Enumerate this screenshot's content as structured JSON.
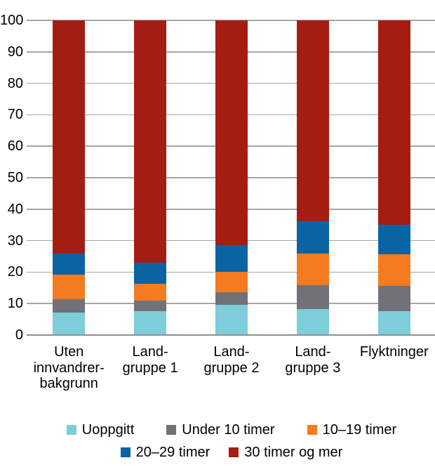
{
  "chart_data": {
    "type": "bar",
    "subtype": "stacked-percent",
    "title": "",
    "xlabel": "",
    "ylabel": "",
    "ylim": [
      0,
      100
    ],
    "yticks": [
      0,
      10,
      20,
      30,
      40,
      50,
      60,
      70,
      80,
      90,
      100
    ],
    "grid": true,
    "legend_position": "bottom",
    "categories": [
      "Uten\ninnvandrer-\nbakgrunn",
      "Land-\ngruppe 1",
      "Land-\ngruppe 2",
      "Land-\ngruppe 3",
      "Flyktninger"
    ],
    "series": [
      {
        "name": "Uoppgitt",
        "color": "#7dcddb",
        "values": [
          7.1,
          7.7,
          9.5,
          8.3,
          7.6
        ]
      },
      {
        "name": "Under 10 timer",
        "color": "#717277",
        "values": [
          4.4,
          3.3,
          4.1,
          7.5,
          8.1
        ]
      },
      {
        "name": "10–19 timer",
        "color": "#f47b20",
        "values": [
          7.7,
          5.3,
          6.5,
          10.2,
          10.0
        ]
      },
      {
        "name": "20–29 timer",
        "color": "#0a64a4",
        "values": [
          6.8,
          6.8,
          8.4,
          10.2,
          9.3
        ]
      },
      {
        "name": "30 timer og mer",
        "color": "#a41d13",
        "values": [
          74.0,
          76.9,
          71.5,
          63.8,
          65.0
        ]
      }
    ],
    "legend_rows": [
      [
        "Uoppgitt",
        "Under 10 timer",
        "10–19 timer"
      ],
      [
        "20–29 timer",
        "30 timer og mer"
      ]
    ]
  },
  "colors": {
    "background": "#ffffff",
    "gridline": "#a6a6a6",
    "axis_line": "#8f8f8f",
    "text": "#000000"
  }
}
